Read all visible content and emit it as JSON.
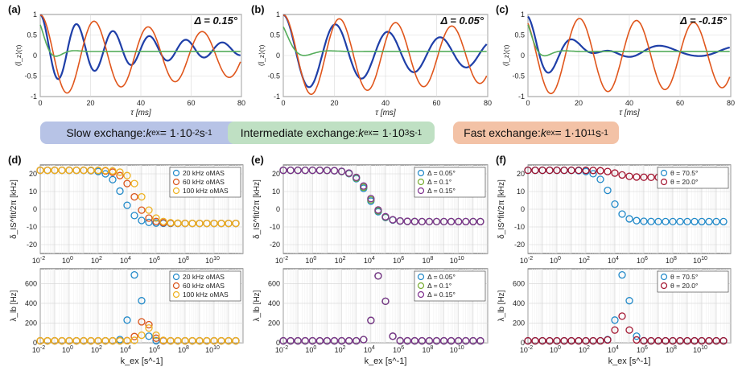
{
  "exchange_legend": [
    {
      "prefix": "Slow exchange: ",
      "kvar": "k",
      "ksub": "ex",
      "value": " = 1·10",
      "exp": "-2",
      "unit": " s",
      "unit_exp": "-1",
      "color": "#b7c3e6"
    },
    {
      "prefix": "Intermediate exchange: ",
      "kvar": "k",
      "ksub": "ex",
      "value": " = 1·10",
      "exp": "3",
      "unit": " s",
      "unit_exp": "-1",
      "color": "#bfe0c3"
    },
    {
      "prefix": "Fast exchange: ",
      "kvar": "k",
      "ksub": "ex",
      "value": " = 1·10",
      "exp": "11",
      "unit": " s",
      "unit_exp": "-1",
      "color": "#f3c2a6"
    }
  ],
  "colors": {
    "blue": "#1f3fa8",
    "orange": "#e0561c",
    "green": "#55ad5b",
    "c_blue": "#1f88c8",
    "c_orange": "#d95319",
    "c_yellow": "#edb120",
    "c_green": "#77ac30",
    "c_purple": "#7e2f8e",
    "c_maroon": "#a2142f"
  },
  "chart_data": [
    {
      "id": "a",
      "type": "line",
      "panel_label": "(a)",
      "annotation": "Δ = 0.15°",
      "xlabel": "τ [ms]",
      "ylabel": "⟨Î_z⟩(τ)",
      "xlim": [
        0,
        80
      ],
      "ylim": [
        -1,
        1
      ],
      "xticks": [
        0,
        20,
        40,
        60,
        80
      ],
      "yticks": [
        -1,
        -0.5,
        0,
        0.5,
        1
      ],
      "xtick_labels": [
        "0",
        "20",
        "40",
        "60",
        "80"
      ],
      "ytick_labels": [
        "-1",
        "-0.5",
        "0",
        "0.5",
        "1"
      ],
      "grid": true,
      "series": [
        {
          "color": "blue",
          "model": {
            "amp": 1.0,
            "period": 14.5,
            "decay": 45,
            "floor": 0.15
          }
        },
        {
          "color": "orange",
          "model": {
            "amp": 1.0,
            "period": 21.5,
            "decay": 120,
            "floor": 0
          }
        },
        {
          "color": "green",
          "model": {
            "amp": 0.75,
            "period": 15,
            "decay": 4,
            "floor": 0.1
          }
        }
      ]
    },
    {
      "id": "b",
      "type": "line",
      "panel_label": "(b)",
      "annotation": "Δ = 0.05°",
      "xlabel": "τ [ms]",
      "ylabel": "⟨Î_z⟩(τ)",
      "xlim": [
        0,
        80
      ],
      "ylim": [
        -1,
        1
      ],
      "xticks": [
        0,
        20,
        40,
        60,
        80
      ],
      "yticks": [
        -1,
        -0.5,
        0,
        0.5,
        1
      ],
      "xtick_labels": [
        "0",
        "20",
        "40",
        "60",
        "80"
      ],
      "ytick_labels": [
        "-1",
        "-0.5",
        "0",
        "0.5",
        "1"
      ],
      "grid": true,
      "series": [
        {
          "color": "blue",
          "model": {
            "amp": 1.0,
            "period": 20.5,
            "decay": 70,
            "floor": 0.05
          }
        },
        {
          "color": "orange",
          "model": {
            "amp": 1.0,
            "period": 22.0,
            "decay": 200,
            "floor": 0
          }
        },
        {
          "color": "green",
          "model": {
            "amp": 0.7,
            "period": 20,
            "decay": 5,
            "floor": 0.1
          }
        }
      ]
    },
    {
      "id": "c",
      "type": "line",
      "panel_label": "(c)",
      "annotation": "Δ = -0.15°",
      "xlabel": "τ [ms]",
      "ylabel": "⟨Î_z⟩(τ)",
      "xlim": [
        0,
        80
      ],
      "ylim": [
        -1,
        1
      ],
      "xticks": [
        0,
        20,
        40,
        60,
        80
      ],
      "yticks": [
        -1,
        -0.5,
        0,
        0.5,
        1
      ],
      "xtick_labels": [
        "0",
        "20",
        "40",
        "60",
        "80"
      ],
      "ytick_labels": [
        "-1",
        "-0.5",
        "0",
        "0.5",
        "1"
      ],
      "grid": true,
      "series": [
        {
          "color": "blue",
          "model": {
            "amp": 0.95,
            "period": 17,
            "decay": 14,
            "floor": 0.1,
            "wobble": 0.12
          }
        },
        {
          "color": "orange",
          "model": {
            "amp": 0.95,
            "period": 22.5,
            "decay": 400,
            "floor": 0,
            "phase": 0.6
          }
        },
        {
          "color": "green",
          "model": {
            "amp": 0.75,
            "period": 16,
            "decay": 4,
            "floor": 0.1
          }
        }
      ]
    },
    {
      "id": "d",
      "type": "scatter",
      "panel_label": "(d)",
      "xscale": "log",
      "ylabel": "δ_IS^fit/2π [kHz]",
      "xlim": [
        -2,
        12
      ],
      "ylim": [
        -25,
        25
      ],
      "yticks": [
        -20,
        -10,
        0,
        10,
        20
      ],
      "ytick_labels": [
        "-20",
        "-10",
        "0",
        "10",
        "20"
      ],
      "xtick_exps": [
        -2,
        0,
        2,
        4,
        6,
        8,
        10
      ],
      "xtick_base": "10",
      "grid": true,
      "legend_loc": "top-right",
      "series": [
        {
          "name": "20 kHz oMAS",
          "color": "c_blue",
          "kind": "shift",
          "model": {
            "hi": 22,
            "lo": -8,
            "pole": 3.7,
            "width": 1.3
          }
        },
        {
          "name": "60 kHz oMAS",
          "color": "c_orange",
          "kind": "shift",
          "model": {
            "hi": 22,
            "lo": -8,
            "pole": 4.5,
            "width": 1.3
          }
        },
        {
          "name": "100 kHz oMAS",
          "color": "c_yellow",
          "kind": "shift",
          "model": {
            "hi": 22,
            "lo": -8,
            "pole": 5.0,
            "width": 1.3
          }
        }
      ]
    },
    {
      "id": "e",
      "type": "scatter",
      "panel_label": "(e)",
      "xscale": "log",
      "ylabel": "δ_IS^fit/2π [kHz]",
      "xlim": [
        -2,
        12
      ],
      "ylim": [
        -25,
        25
      ],
      "yticks": [
        -20,
        -10,
        0,
        10,
        20
      ],
      "ytick_labels": [
        "-20",
        "-10",
        "0",
        "10",
        "20"
      ],
      "xtick_exps": [
        -2,
        0,
        2,
        4,
        6,
        8,
        10
      ],
      "xtick_base": "10",
      "grid": true,
      "legend_loc": "top-right",
      "series": [
        {
          "name": "Δ = 0.05°",
          "color": "c_blue",
          "kind": "shift",
          "model": {
            "hi": 22,
            "lo": -7,
            "pole": 3.8,
            "width": 1.4
          }
        },
        {
          "name": "Δ = 0.1°",
          "color": "c_green",
          "kind": "shift",
          "model": {
            "hi": 22,
            "lo": -7,
            "pole": 3.85,
            "width": 1.4
          }
        },
        {
          "name": "Δ = 0.15°",
          "color": "c_purple",
          "kind": "shift",
          "model": {
            "hi": 22,
            "lo": -7,
            "pole": 3.9,
            "width": 1.4
          }
        }
      ]
    },
    {
      "id": "f",
      "type": "scatter",
      "panel_label": "(f)",
      "xscale": "log",
      "ylabel": "δ_IS^fit/2π [kHz]",
      "xlim": [
        -2,
        12
      ],
      "ylim": [
        -25,
        25
      ],
      "yticks": [
        -20,
        -10,
        0,
        10,
        20
      ],
      "ytick_labels": [
        "-20",
        "-10",
        "0",
        "10",
        "20"
      ],
      "xtick_exps": [
        -2,
        0,
        2,
        4,
        6,
        8,
        10
      ],
      "xtick_base": "10",
      "grid": true,
      "legend_loc": "top-right",
      "series": [
        {
          "name": "θ = 70.5°",
          "color": "c_blue",
          "kind": "shift",
          "model": {
            "hi": 22,
            "lo": -7,
            "pole": 3.7,
            "width": 1.3
          }
        },
        {
          "name": "θ = 20.0°",
          "color": "c_maroon",
          "kind": "shift",
          "model": {
            "hi": 22,
            "lo": 18,
            "pole": 4.2,
            "width": 1.3
          }
        }
      ]
    },
    {
      "id": "g",
      "type": "scatter",
      "panel_label": "",
      "xscale": "log",
      "ylabel": "λ_lb [Hz]",
      "xlabel": "k_ex [s^-1]",
      "xlim": [
        -2,
        12
      ],
      "ylim": [
        0,
        750
      ],
      "yticks": [
        0,
        200,
        400,
        600
      ],
      "ytick_labels": [
        "0",
        "200",
        "400",
        "600"
      ],
      "xtick_exps": [
        -2,
        0,
        2,
        4,
        6,
        8,
        10
      ],
      "xtick_base": "10",
      "grid": true,
      "legend_loc": "top-right",
      "series": [
        {
          "name": "20 kHz oMAS",
          "color": "c_blue",
          "kind": "peak",
          "model": {
            "peak": 710,
            "center": 4.6,
            "width": 0.55,
            "base": 20
          }
        },
        {
          "name": "60 kHz oMAS",
          "color": "c_orange",
          "kind": "peak",
          "model": {
            "peak": 240,
            "center": 5.2,
            "width": 0.55,
            "base": 20
          }
        },
        {
          "name": "100 kHz oMAS",
          "color": "c_yellow",
          "kind": "peak",
          "model": {
            "peak": 150,
            "center": 5.5,
            "width": 0.55,
            "base": 20
          }
        }
      ]
    },
    {
      "id": "h",
      "type": "scatter",
      "panel_label": "",
      "xscale": "log",
      "ylabel": "λ_lb [Hz]",
      "xlabel": "k_ex [s^-1]",
      "xlim": [
        -2,
        12
      ],
      "ylim": [
        0,
        750
      ],
      "yticks": [
        0,
        200,
        400,
        600
      ],
      "ytick_labels": [
        "0",
        "200",
        "400",
        "600"
      ],
      "xtick_exps": [
        -2,
        0,
        2,
        4,
        6,
        8,
        10
      ],
      "xtick_base": "10",
      "grid": true,
      "legend_loc": "top-right",
      "series": [
        {
          "name": "Δ = 0.05°",
          "color": "c_blue",
          "kind": "peak",
          "model": {
            "peak": 700,
            "center": 4.6,
            "width": 0.55,
            "base": 20
          }
        },
        {
          "name": "Δ = 0.1°",
          "color": "c_green",
          "kind": "peak",
          "model": {
            "peak": 700,
            "center": 4.6,
            "width": 0.55,
            "base": 20
          }
        },
        {
          "name": "Δ = 0.15°",
          "color": "c_purple",
          "kind": "peak",
          "model": {
            "peak": 700,
            "center": 4.6,
            "width": 0.55,
            "base": 20
          }
        }
      ]
    },
    {
      "id": "i",
      "type": "scatter",
      "panel_label": "",
      "xscale": "log",
      "ylabel": "λ_lb [Hz]",
      "xlabel": "k_ex [s^-1]",
      "xlim": [
        -2,
        12
      ],
      "ylim": [
        0,
        750
      ],
      "yticks": [
        0,
        200,
        400,
        600
      ],
      "ytick_labels": [
        "0",
        "200",
        "400",
        "600"
      ],
      "xtick_exps": [
        -2,
        0,
        2,
        4,
        6,
        8,
        10
      ],
      "xtick_base": "10",
      "grid": true,
      "legend_loc": "top-right",
      "series": [
        {
          "name": "θ = 70.5°",
          "color": "c_blue",
          "kind": "peak",
          "model": {
            "peak": 710,
            "center": 4.6,
            "width": 0.55,
            "base": 20
          }
        },
        {
          "name": "θ = 20.0°",
          "color": "c_maroon",
          "kind": "peak",
          "model": {
            "peak": 270,
            "center": 4.5,
            "width": 0.55,
            "base": 20
          }
        }
      ]
    }
  ]
}
